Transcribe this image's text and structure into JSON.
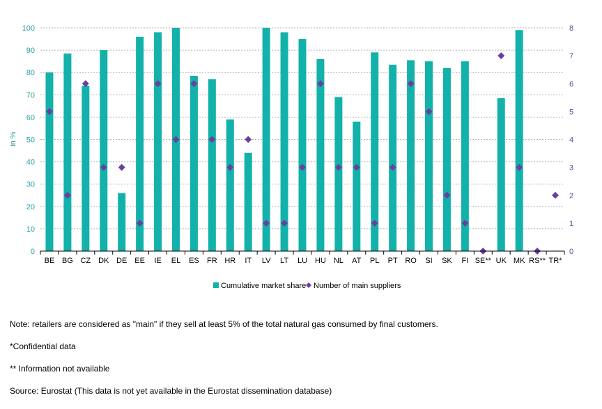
{
  "chart_data": {
    "type": "bar",
    "ylabel": "in %",
    "ylim": [
      0,
      100
    ],
    "y2lim": [
      0,
      8
    ],
    "yticks": [
      0,
      10,
      20,
      30,
      40,
      50,
      60,
      70,
      80,
      90,
      100
    ],
    "y2ticks": [
      0,
      1,
      2,
      3,
      4,
      5,
      6,
      7,
      8
    ],
    "grid": true,
    "legend_position": "bottom",
    "categories": [
      "BE",
      "BG",
      "CZ",
      "DK",
      "DE",
      "EE",
      "IE",
      "EL",
      "ES",
      "FR",
      "HR",
      "IT",
      "LV",
      "LT",
      "LU",
      "HU",
      "NL",
      "AT",
      "PL",
      "PT",
      "RO",
      "SI",
      "SK",
      "FI",
      "SE**",
      "UK",
      "MK",
      "RS**",
      "TR*"
    ],
    "series": [
      {
        "name": "Cumulative market share",
        "type": "bar",
        "axis": "left",
        "color": "#12b2aa",
        "values": [
          80,
          88.5,
          74,
          90,
          26,
          96,
          98,
          100,
          78.5,
          77,
          59,
          44,
          100,
          98,
          95,
          86,
          69,
          58,
          89,
          83.5,
          85.5,
          85,
          82,
          85,
          null,
          68.5,
          99,
          null,
          null
        ]
      },
      {
        "name": "Number of main suppliers",
        "type": "scatter",
        "axis": "right",
        "color": "#6b3fa0",
        "values": [
          5,
          2,
          6,
          3,
          3,
          1,
          6,
          4,
          6,
          4,
          3,
          4,
          1,
          1,
          3,
          6,
          3,
          3,
          1,
          3,
          6,
          5,
          2,
          1,
          0,
          7,
          3,
          0,
          2
        ]
      }
    ]
  },
  "notes": [
    "Note: retailers are considered as \"main\" if they sell at least 5% of the total natural gas consumed by final customers.",
    "*Confidential data",
    "** Information not available",
    "Source: Eurostat (This data is not yet available in the Eurostat dissemination database)"
  ]
}
